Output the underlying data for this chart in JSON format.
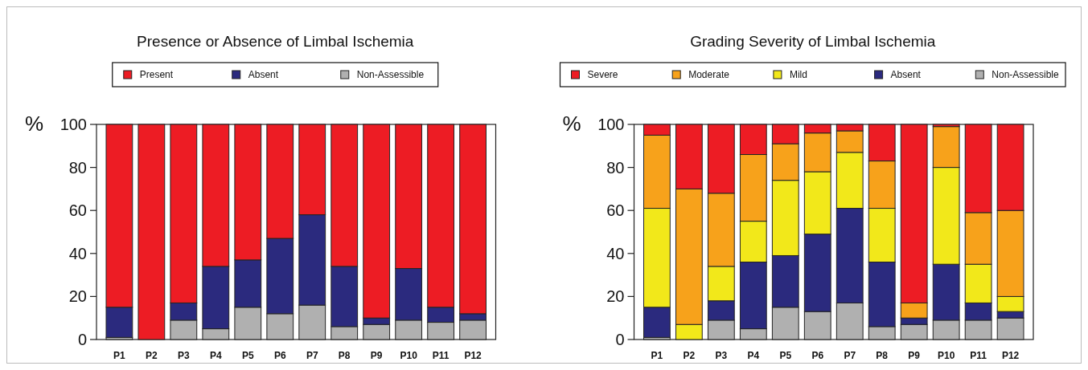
{
  "chart_data": [
    {
      "type": "bar",
      "title": "Presence or Absence of Limbal Ischemia",
      "ylabel": "%",
      "stacked": true,
      "legend": "top",
      "ylim": [
        0,
        100
      ],
      "yticks": [
        0,
        20,
        40,
        60,
        80,
        100
      ],
      "categories": [
        "P1",
        "P2",
        "P3",
        "P4",
        "P5",
        "P6",
        "P7",
        "P8",
        "P9",
        "P10",
        "P11",
        "P12"
      ],
      "series": [
        {
          "name": "Non-Assessible",
          "color": "#b0b0b0",
          "values": [
            1,
            0,
            9,
            5,
            15,
            12,
            16,
            6,
            7,
            9,
            8,
            9
          ]
        },
        {
          "name": "Absent",
          "color": "#2b2a7e",
          "values": [
            14,
            0,
            8,
            29,
            22,
            35,
            42,
            28,
            3,
            24,
            7,
            3
          ]
        },
        {
          "name": "Present",
          "color": "#ed1c24",
          "values": [
            85,
            100,
            83,
            66,
            63,
            53,
            42,
            66,
            90,
            67,
            85,
            88
          ]
        }
      ]
    },
    {
      "type": "bar",
      "title": "Grading Severity of Limbal Ischemia",
      "ylabel": "%",
      "stacked": true,
      "legend": "top",
      "ylim": [
        0,
        100
      ],
      "yticks": [
        0,
        20,
        40,
        60,
        80,
        100
      ],
      "categories": [
        "P1",
        "P2",
        "P3",
        "P4",
        "P5",
        "P6",
        "P7",
        "P8",
        "P9",
        "P10",
        "P11",
        "P12"
      ],
      "series": [
        {
          "name": "Non-Assessible",
          "color": "#b0b0b0",
          "values": [
            1,
            0,
            9,
            5,
            15,
            13,
            17,
            6,
            7,
            9,
            9,
            10
          ]
        },
        {
          "name": "Absent",
          "color": "#2b2a7e",
          "values": [
            14,
            0,
            9,
            31,
            24,
            36,
            44,
            30,
            3,
            26,
            8,
            3
          ]
        },
        {
          "name": "Mild",
          "color": "#f2e81a",
          "values": [
            46,
            7,
            16,
            19,
            35,
            29,
            26,
            25,
            0,
            45,
            18,
            7
          ]
        },
        {
          "name": "Moderate",
          "color": "#f7a21b",
          "values": [
            34,
            63,
            34,
            31,
            17,
            18,
            10,
            22,
            7,
            19,
            24,
            40
          ]
        },
        {
          "name": "Severe",
          "color": "#ed1c24",
          "values": [
            5,
            30,
            32,
            14,
            9,
            4,
            3,
            17,
            83,
            1,
            41,
            40
          ]
        }
      ]
    }
  ]
}
